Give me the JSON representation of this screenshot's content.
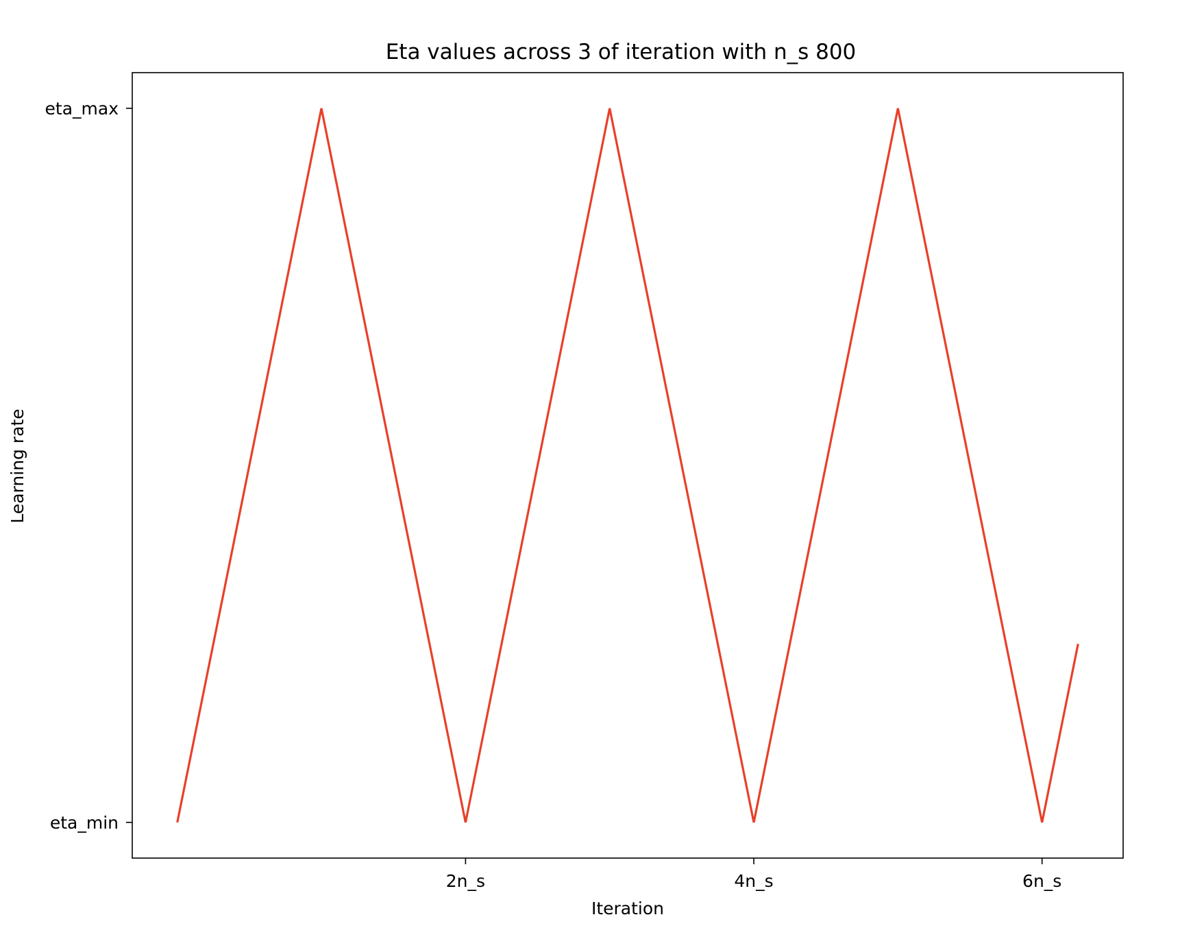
{
  "chart_data": {
    "type": "line",
    "title": "Eta values across 3 of iteration with n_s  800",
    "xlabel": "Iteration",
    "ylabel": "Learning rate",
    "x_ticks": [
      {
        "value": 1600,
        "label": "2n_s"
      },
      {
        "value": 3200,
        "label": "4n_s"
      },
      {
        "value": 4800,
        "label": "6n_s"
      }
    ],
    "y_ticks": [
      {
        "value": 0,
        "label": "eta_min"
      },
      {
        "value": 1,
        "label": "eta_max"
      }
    ],
    "xlim": [
      -250,
      5250
    ],
    "ylim": [
      -0.05,
      1.05
    ],
    "series": [
      {
        "color": "#e8402a",
        "x": [
          0,
          800,
          1600,
          2400,
          3200,
          4000,
          4800,
          5000
        ],
        "y": [
          0,
          1,
          0,
          1,
          0,
          1,
          0,
          0.25
        ]
      }
    ],
    "grid": false
  }
}
